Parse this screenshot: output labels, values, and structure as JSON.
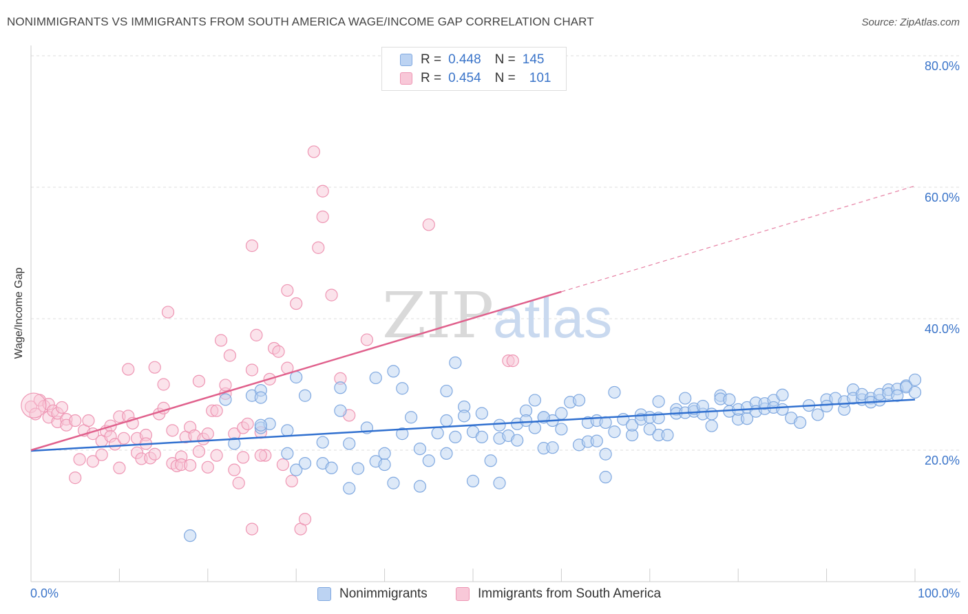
{
  "title": "NONIMMIGRANTS VS IMMIGRANTS FROM SOUTH AMERICA WAGE/INCOME GAP CORRELATION CHART",
  "source": "Source: ZipAtlas.com",
  "watermark": {
    "zip": "ZIP",
    "atlas": "atlas"
  },
  "legend": {
    "r_label": "R =",
    "n_label": "N =",
    "rows": [
      {
        "r": "0.448",
        "n": "145",
        "color": "#7fa8e0"
      },
      {
        "r": "0.454",
        "n": "101",
        "color": "#ee95b3"
      }
    ]
  },
  "bottom_legend": [
    "Nonimmigrants",
    "Immigrants from South America"
  ],
  "chart_data": {
    "type": "scatter",
    "title": "NONIMMIGRANTS VS IMMIGRANTS FROM SOUTH AMERICA WAGE/INCOME GAP CORRELATION CHART",
    "xlabel": "",
    "ylabel": "Wage/Income Gap",
    "xlim": [
      0,
      100
    ],
    "ylim": [
      0,
      85
    ],
    "x_tick_labels": [
      "0.0%",
      "100.0%"
    ],
    "y_ticks": [
      20,
      40,
      60,
      80
    ],
    "y_tick_labels": [
      "20.0%",
      "40.0%",
      "60.0%",
      "80.0%"
    ],
    "grid": true,
    "legend_position": "top-center",
    "series": [
      {
        "name": "Nonimmigrants",
        "color": "#7fa8e0",
        "line_color": "#2f6fcf",
        "trend": {
          "x": [
            0,
            100
          ],
          "y": [
            19.9,
            27.7
          ]
        },
        "points": [
          [
            22,
            27.7
          ],
          [
            23,
            21
          ],
          [
            25,
            28.3
          ],
          [
            26,
            23.4
          ],
          [
            26,
            29.1
          ],
          [
            26,
            28
          ],
          [
            27,
            24
          ],
          [
            29,
            19.5
          ],
          [
            29,
            23
          ],
          [
            30,
            31.1
          ],
          [
            30,
            17
          ],
          [
            31,
            18
          ],
          [
            31,
            28.3
          ],
          [
            33,
            21.2
          ],
          [
            33,
            18
          ],
          [
            35,
            26
          ],
          [
            35,
            29.5
          ],
          [
            36,
            21
          ],
          [
            36,
            14.2
          ],
          [
            37,
            17.2
          ],
          [
            38,
            23.4
          ],
          [
            39,
            18.3
          ],
          [
            39,
            31
          ],
          [
            40,
            17.8
          ],
          [
            40,
            19.5
          ],
          [
            41,
            32
          ],
          [
            41,
            15
          ],
          [
            42,
            29.4
          ],
          [
            42,
            22.5
          ],
          [
            43,
            25
          ],
          [
            44,
            20.2
          ],
          [
            44,
            14.5
          ],
          [
            45,
            18.4
          ],
          [
            46,
            22.6
          ],
          [
            47,
            24.5
          ],
          [
            47,
            19.5
          ],
          [
            48,
            22
          ],
          [
            48,
            33.3
          ],
          [
            49,
            26.6
          ],
          [
            49,
            25.2
          ],
          [
            50,
            22.8
          ],
          [
            50,
            15.3
          ],
          [
            51,
            22
          ],
          [
            51,
            25.6
          ],
          [
            52,
            18.4
          ],
          [
            53,
            23.8
          ],
          [
            53,
            21.8
          ],
          [
            54,
            22.2
          ],
          [
            55,
            24
          ],
          [
            55,
            21.5
          ],
          [
            56,
            26
          ],
          [
            56,
            24.5
          ],
          [
            57,
            23.4
          ],
          [
            57,
            27.6
          ],
          [
            58,
            25
          ],
          [
            58,
            20.3
          ],
          [
            59,
            24.5
          ],
          [
            59,
            20.4
          ],
          [
            60,
            23.2
          ],
          [
            60,
            25.6
          ],
          [
            61,
            27.3
          ],
          [
            62,
            27.6
          ],
          [
            62,
            20.8
          ],
          [
            63,
            21.3
          ],
          [
            63,
            24.2
          ],
          [
            64,
            24.5
          ],
          [
            64,
            21.4
          ],
          [
            65,
            24.2
          ],
          [
            65,
            19.4
          ],
          [
            65,
            15.9
          ],
          [
            66,
            28.8
          ],
          [
            66,
            22.8
          ],
          [
            67,
            24.7
          ],
          [
            68,
            22.3
          ],
          [
            68,
            23.8
          ],
          [
            69,
            25.4
          ],
          [
            69,
            24.7
          ],
          [
            70,
            23.2
          ],
          [
            70,
            25
          ],
          [
            71,
            24.9
          ],
          [
            71,
            22.3
          ],
          [
            72,
            22.3
          ],
          [
            73,
            26.2
          ],
          [
            73,
            25.6
          ],
          [
            74,
            27.9
          ],
          [
            74,
            25.7
          ],
          [
            75,
            25.9
          ],
          [
            75,
            26.3
          ],
          [
            76,
            25.5
          ],
          [
            76,
            26.7
          ],
          [
            77,
            25.5
          ],
          [
            77,
            23.7
          ],
          [
            78,
            28.3
          ],
          [
            78,
            27.8
          ],
          [
            79,
            27.7
          ],
          [
            79,
            25.9
          ],
          [
            80,
            24.7
          ],
          [
            80,
            26.2
          ],
          [
            81,
            24.8
          ],
          [
            81,
            26.5
          ],
          [
            82,
            27.2
          ],
          [
            82,
            25.9
          ],
          [
            83,
            26.3
          ],
          [
            83,
            27.1
          ],
          [
            84,
            27.6
          ],
          [
            84,
            26.5
          ],
          [
            85,
            28.4
          ],
          [
            85,
            26.2
          ],
          [
            86,
            24.9
          ],
          [
            87,
            24.2
          ],
          [
            88,
            26.8
          ],
          [
            89,
            25.4
          ],
          [
            90,
            27.7
          ],
          [
            90,
            26.7
          ],
          [
            91,
            27.9
          ],
          [
            92,
            26.2
          ],
          [
            92,
            27.4
          ],
          [
            93,
            29.2
          ],
          [
            93,
            27.9
          ],
          [
            94,
            27.7
          ],
          [
            94,
            28.5
          ],
          [
            95,
            27.9
          ],
          [
            95,
            27.3
          ],
          [
            96,
            27.6
          ],
          [
            96,
            28.5
          ],
          [
            97,
            29.2
          ],
          [
            97,
            28.6
          ],
          [
            98,
            29.3
          ],
          [
            98,
            28.3
          ],
          [
            99,
            29.8
          ],
          [
            99,
            29.6
          ],
          [
            100,
            28.8
          ],
          [
            100,
            30.7
          ],
          [
            53,
            15
          ],
          [
            47,
            29
          ],
          [
            34,
            17.3
          ],
          [
            26,
            23.8
          ],
          [
            71,
            27.4
          ],
          [
            58,
            25
          ],
          [
            18,
            7
          ]
        ]
      },
      {
        "name": "Immigrants from South America",
        "color": "#ee95b3",
        "line_color": "#e0608c",
        "trend": {
          "x": [
            0,
            60
          ],
          "y": [
            20,
            44.1
          ]
        },
        "trend_extension": {
          "x": [
            60,
            100
          ],
          "y": [
            44.1,
            60.2
          ]
        },
        "points": [
          [
            0,
            26.6
          ],
          [
            0.5,
            25.5
          ],
          [
            1,
            27.6
          ],
          [
            1.5,
            26.7
          ],
          [
            2,
            25
          ],
          [
            2,
            27
          ],
          [
            2.5,
            26
          ],
          [
            3,
            24.3
          ],
          [
            3,
            25.6
          ],
          [
            3.5,
            26.5
          ],
          [
            4,
            24.7
          ],
          [
            4,
            23.8
          ],
          [
            5,
            24.5
          ],
          [
            5,
            15.8
          ],
          [
            5.5,
            18.6
          ],
          [
            6,
            23
          ],
          [
            6.5,
            24.5
          ],
          [
            7,
            22.5
          ],
          [
            7,
            18.3
          ],
          [
            8,
            21.4
          ],
          [
            8,
            19.3
          ],
          [
            8.5,
            22.9
          ],
          [
            9,
            23.7
          ],
          [
            9,
            22.1
          ],
          [
            9.5,
            20.9
          ],
          [
            10,
            17.3
          ],
          [
            10,
            25.1
          ],
          [
            10.5,
            21.8
          ],
          [
            11,
            32.3
          ],
          [
            11,
            25.2
          ],
          [
            11.5,
            24.1
          ],
          [
            12,
            21.8
          ],
          [
            12,
            19.6
          ],
          [
            12.5,
            18.7
          ],
          [
            13,
            22.3
          ],
          [
            13,
            21
          ],
          [
            13.5,
            18.8
          ],
          [
            14,
            32.6
          ],
          [
            14,
            19.4
          ],
          [
            14.5,
            25.5
          ],
          [
            15,
            30
          ],
          [
            15,
            26.4
          ],
          [
            15.5,
            41
          ],
          [
            16,
            23
          ],
          [
            16,
            18
          ],
          [
            16.5,
            17.6
          ],
          [
            17,
            19
          ],
          [
            17,
            17.8
          ],
          [
            17.5,
            22
          ],
          [
            18,
            17.7
          ],
          [
            18,
            23.5
          ],
          [
            18.5,
            22.2
          ],
          [
            19,
            30.5
          ],
          [
            19,
            19.8
          ],
          [
            19.5,
            21.7
          ],
          [
            20,
            17.4
          ],
          [
            20,
            22.5
          ],
          [
            20.5,
            26
          ],
          [
            21,
            19.2
          ],
          [
            21,
            26
          ],
          [
            21.5,
            36.7
          ],
          [
            22,
            28.6
          ],
          [
            22,
            29.9
          ],
          [
            22.5,
            34.4
          ],
          [
            23,
            17
          ],
          [
            23,
            22.5
          ],
          [
            23.5,
            15
          ],
          [
            24,
            23.4
          ],
          [
            24.5,
            24
          ],
          [
            25,
            51.1
          ],
          [
            25,
            32.2
          ],
          [
            25.5,
            37.5
          ],
          [
            26,
            22.7
          ],
          [
            26.5,
            19.2
          ],
          [
            27,
            30.8
          ],
          [
            27.5,
            35.5
          ],
          [
            28,
            35
          ],
          [
            28.5,
            17.8
          ],
          [
            29,
            44.3
          ],
          [
            29,
            32.5
          ],
          [
            29.5,
            15.3
          ],
          [
            30,
            42.3
          ],
          [
            30.5,
            8
          ],
          [
            31,
            9.5
          ],
          [
            32,
            65.4
          ],
          [
            32.5,
            50.8
          ],
          [
            33,
            55.5
          ],
          [
            33,
            59.4
          ],
          [
            34,
            43.6
          ],
          [
            35,
            30.9
          ],
          [
            36,
            25.3
          ],
          [
            38,
            36.8
          ],
          [
            45,
            54.3
          ],
          [
            54,
            33.6
          ],
          [
            54.5,
            33.6
          ],
          [
            24,
            18.9
          ],
          [
            25,
            8
          ],
          [
            26,
            19.2
          ]
        ]
      }
    ]
  }
}
